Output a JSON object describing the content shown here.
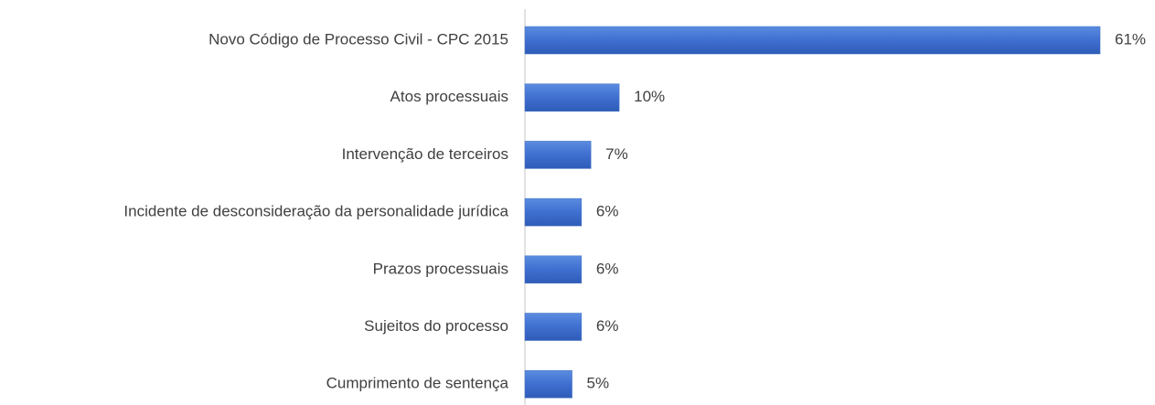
{
  "chart_data": {
    "type": "barh",
    "categories": [
      "Novo Código de Processo Civil - CPC 2015",
      "Atos processuais",
      "Intervenção de terceiros",
      "Incidente de desconsideração da personalidade jurídica",
      "Prazos processuais",
      "Sujeitos do processo",
      "Cumprimento de sentença"
    ],
    "values": [
      61,
      10,
      7,
      6,
      6,
      6,
      5
    ],
    "value_labels": [
      "61%",
      "10%",
      "7%",
      "6%",
      "6%",
      "6%",
      "5%"
    ],
    "color": "#4472c4"
  }
}
